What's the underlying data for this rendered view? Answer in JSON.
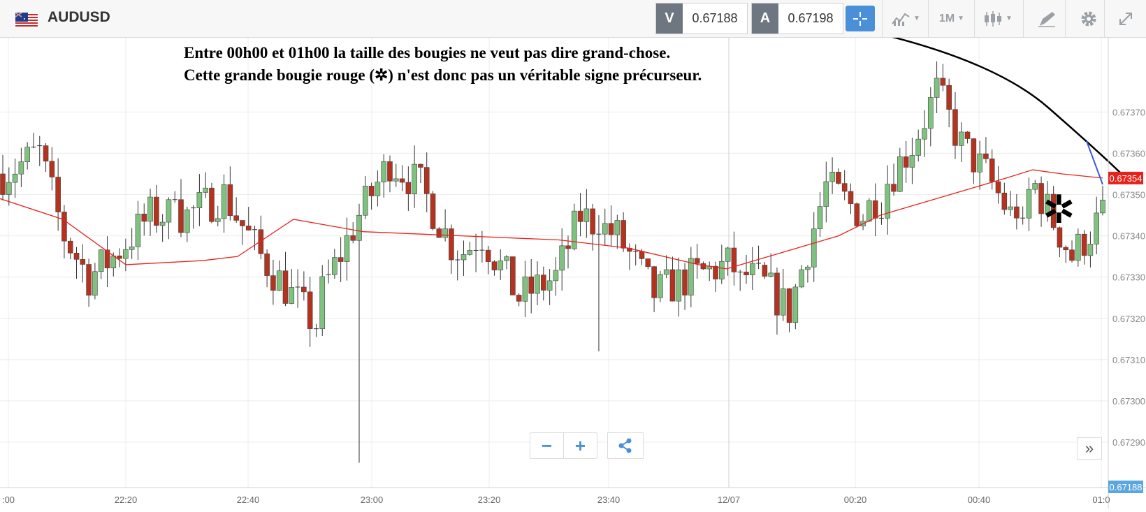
{
  "header": {
    "symbol": "AUDUSD",
    "sell_tag": "V",
    "sell_price": "0.67188",
    "buy_tag": "A",
    "buy_price": "0.67198",
    "timeframe": "1M"
  },
  "annotation": {
    "line1": "Entre 00h00 et 01h00 la taille des bougies ne veut pas dire grand-chose.",
    "line2": "Cette grande bougie rouge (✲) n'est donc pas un véritable signe précurseur.",
    "marker": "✲"
  },
  "chart_data": {
    "type": "candlestick",
    "instrument": "AUDUSD",
    "price_axis": [
      "0.67370",
      "0.67360",
      "0.67350",
      "0.67340",
      "0.67330",
      "0.67320",
      "0.67310",
      "0.67300",
      "0.67290"
    ],
    "ylim": [
      0.67279,
      0.67388
    ],
    "time_axis": [
      ":00",
      "22:20",
      "22:40",
      "23:00",
      "23:20",
      "23:40",
      "12/07",
      "00:20",
      "00:40",
      "01:0"
    ],
    "current_ma_value": "0.67354",
    "current_price": "0.67188",
    "colors": {
      "up": "#7fc27f",
      "down": "#b5321e",
      "ma": "#e8221b",
      "trend": "#000000",
      "blue_line": "#3b5bd6",
      "ma_badge": "#e8221b",
      "price_badge": "#5aa7e0"
    }
  },
  "icons": {
    "flag": "au-us-flag-icon",
    "crosshair": "crosshair-icon",
    "indicators": "indicator-chart-icon",
    "chart_type": "candlestick-icon",
    "draw": "drawing-tool-icon",
    "settings": "gear-icon",
    "fullscreen": "expand-icon",
    "zoom_out": "minus-icon",
    "zoom_in": "plus-icon",
    "share": "share-icon",
    "scroll_end": "double-chevron-right-icon"
  },
  "controls": {
    "zoom_out_label": "−",
    "zoom_in_label": "+",
    "scroll_end_label": "»"
  }
}
